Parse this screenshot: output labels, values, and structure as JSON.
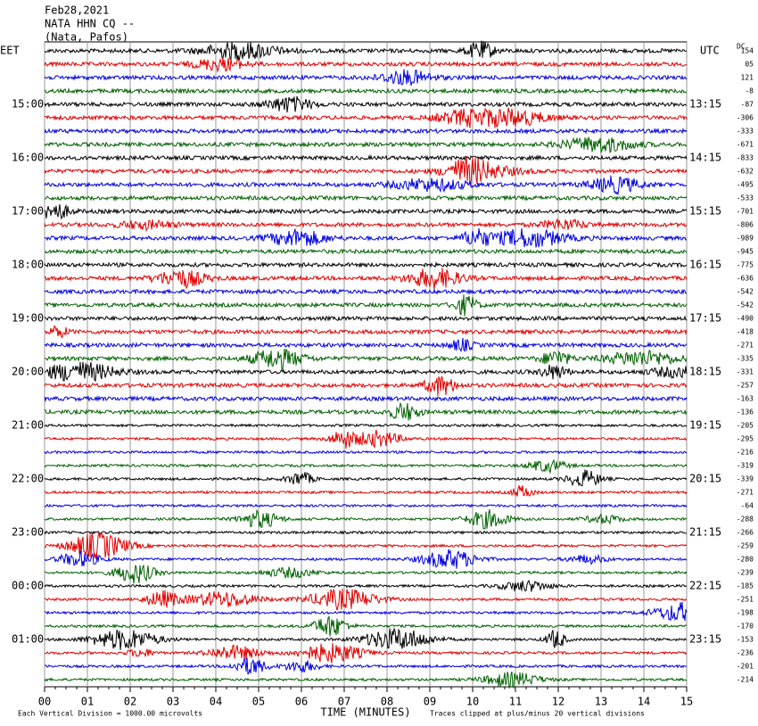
{
  "chart_data": {
    "type": "helicorder",
    "title_lines": [
      "Feb28,2021",
      "NATA HHN CQ --",
      "(Nata, Pafos)"
    ],
    "left_zone": "EET",
    "right_zone": "UTC",
    "dc_label": "DC",
    "local_times": [
      "15:00",
      "16:00",
      "17:00",
      "18:00",
      "19:00",
      "20:00",
      "21:00",
      "22:00",
      "23:00",
      "00:00",
      "01:00"
    ],
    "utc_times": [
      "13:15",
      "14:15",
      "15:15",
      "16:15",
      "17:15",
      "18:15",
      "19:15",
      "20:15",
      "21:15",
      "22:15",
      "23:15"
    ],
    "dc_offsets": [
      "154",
      "05",
      "121",
      "-8",
      "-87",
      "-306",
      "-333",
      "-671",
      "-833",
      "-632",
      "-495",
      "-533",
      "-701",
      "-806",
      "-989",
      "-945",
      "-775",
      "-636",
      "-542",
      "-542",
      "-490",
      "-418",
      "-271",
      "-335",
      "-331",
      "-257",
      "-163",
      "-136",
      "-205",
      "-295",
      "-216",
      "-319",
      "-339",
      "-271",
      "-64",
      "-288",
      "-266",
      "-259",
      "-280",
      "-239",
      "-185",
      "-251",
      "-198",
      "-170",
      "-153",
      "-236",
      "-201",
      "-214"
    ],
    "x_ticks": [
      "00",
      "01",
      "02",
      "03",
      "04",
      "05",
      "06",
      "07",
      "08",
      "09",
      "10",
      "11",
      "12",
      "13",
      "14",
      "15"
    ],
    "xlabel": "TIME (MINUTES)",
    "scale_note": "Each Vertical Division = 1000.00 microvolts",
    "clip_note": "Traces clipped at plus/minus 20 vertical divisions",
    "colors": [
      "#000000",
      "#e00000",
      "#0000e0",
      "#006000"
    ]
  }
}
